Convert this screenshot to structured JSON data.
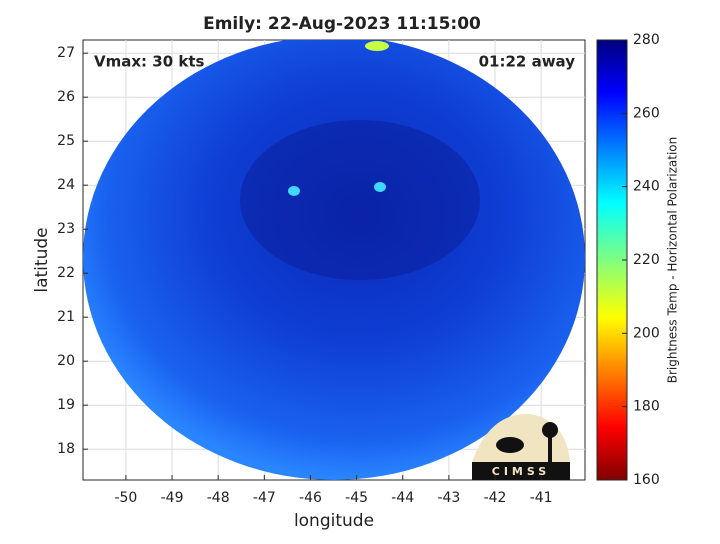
{
  "chart_data": {
    "type": "heatmap",
    "title": "Emily: 22-Aug-2023 11:15:00",
    "annotations": [
      "Vmax: 30 kts",
      "01:22 away"
    ],
    "xlabel": "longitude",
    "ylabel": "latitude",
    "xlim": [
      -50.93,
      -40.05
    ],
    "xticks": [
      -50,
      -49,
      -48,
      -47,
      -46,
      -45,
      -44,
      -43,
      -42,
      -41
    ],
    "ylim": [
      17.3,
      27.3
    ],
    "yticks": [
      18,
      19,
      20,
      21,
      22,
      23,
      24,
      25,
      26,
      27
    ],
    "grid": true,
    "colorbar_label": "Brightness Temp - Horizontal Polarization",
    "clim": [
      160,
      280
    ],
    "cticks": [
      160,
      180,
      200,
      220,
      240,
      260,
      280
    ],
    "logo": "CIMSS"
  }
}
